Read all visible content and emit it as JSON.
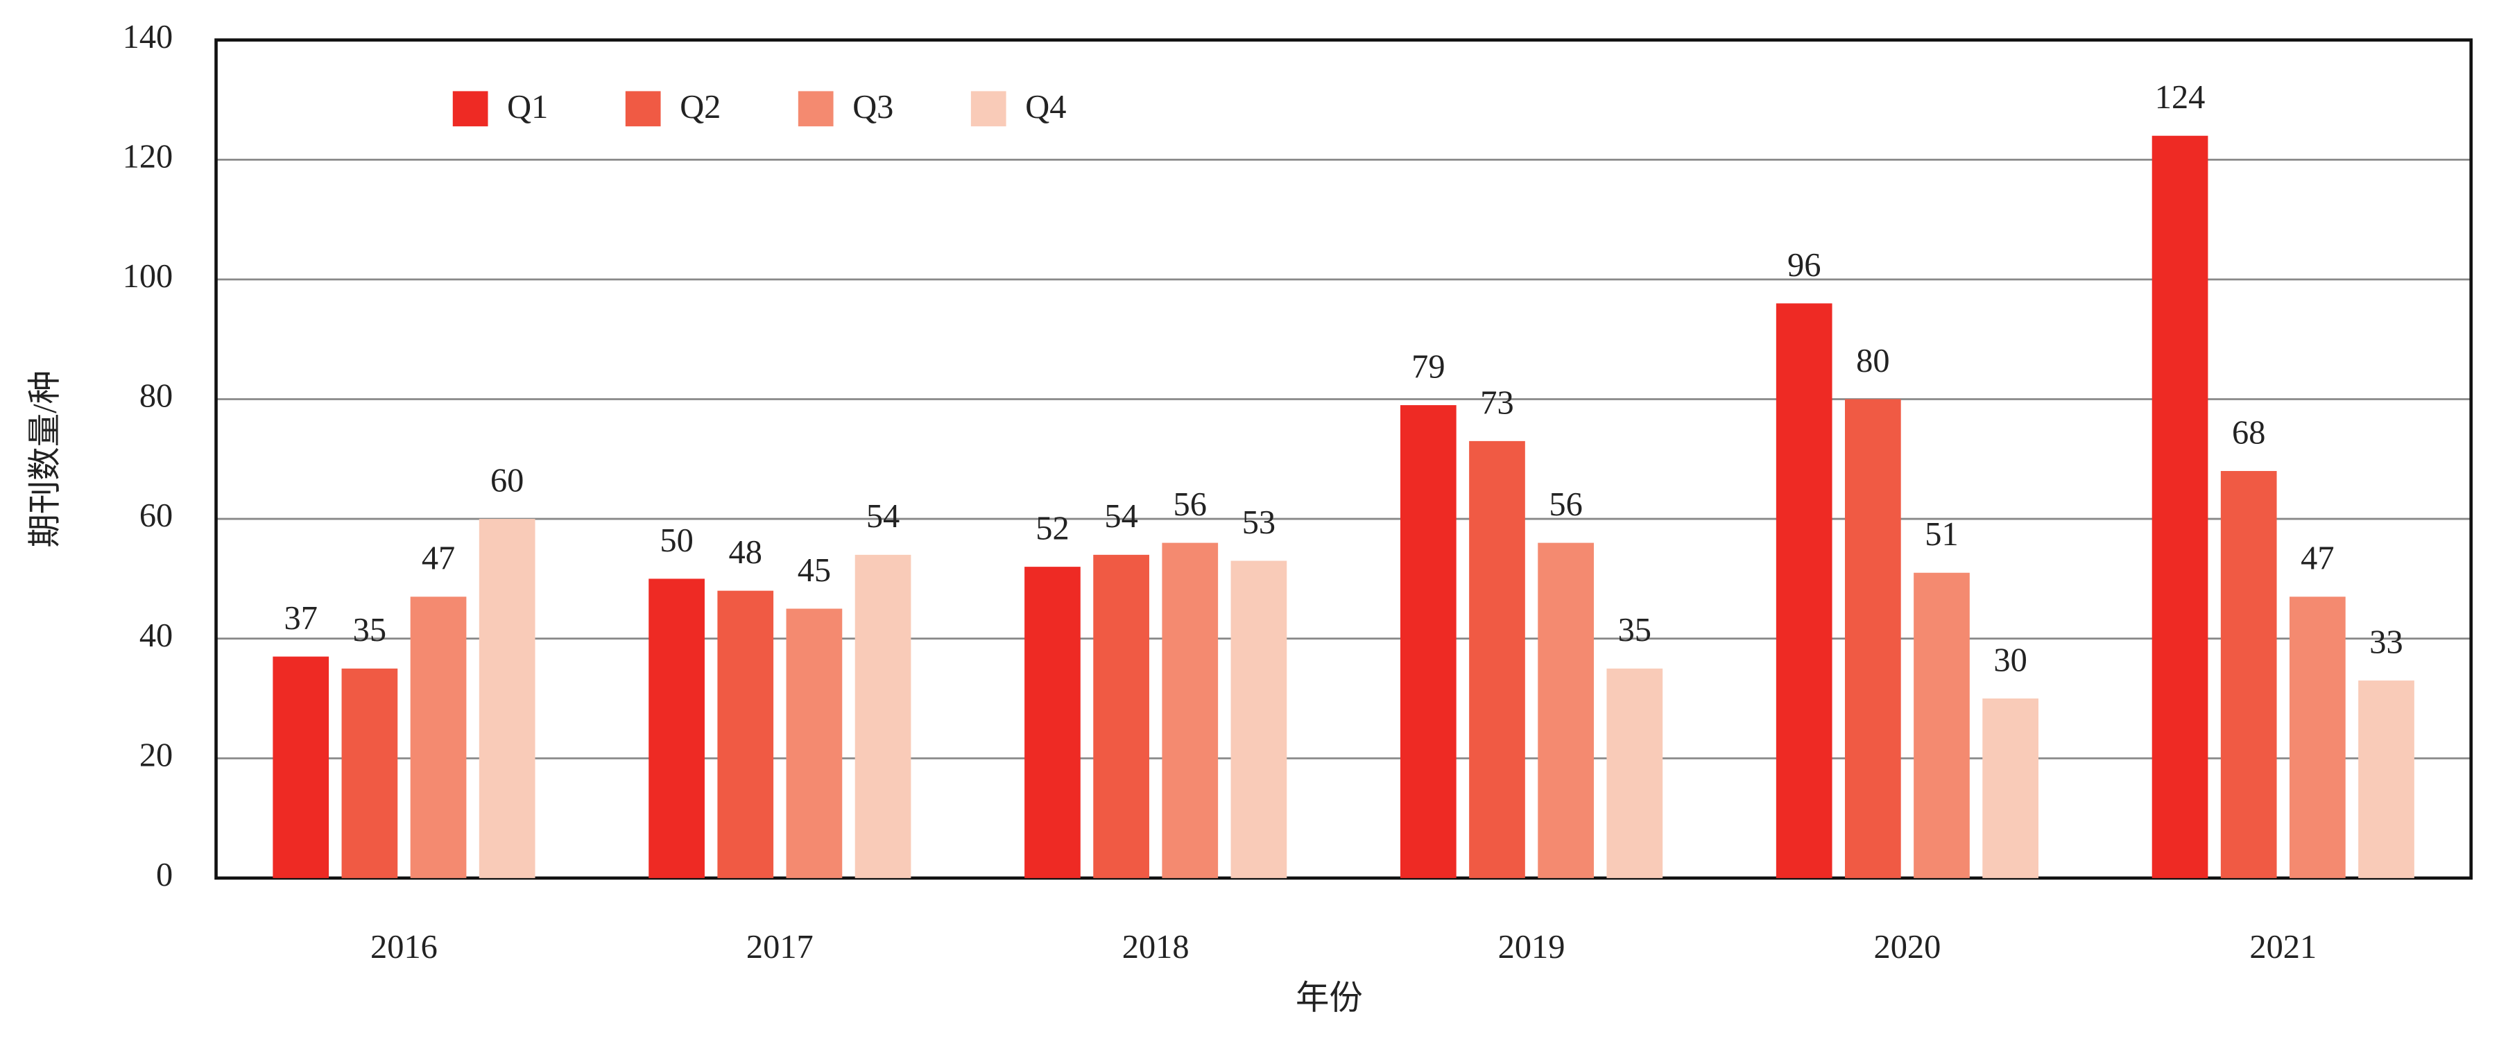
{
  "chart_data": {
    "type": "bar",
    "x_label": "年份",
    "y_label": "期刊数量/种",
    "categories": [
      "2016",
      "2017",
      "2018",
      "2019",
      "2020",
      "2021"
    ],
    "series": [
      {
        "name": "Q1",
        "color": "#ee2a24",
        "values": [
          37,
          50,
          52,
          79,
          96,
          124
        ]
      },
      {
        "name": "Q2",
        "color": "#f05a44",
        "values": [
          35,
          48,
          54,
          73,
          80,
          68
        ]
      },
      {
        "name": "Q3",
        "color": "#f48a70",
        "values": [
          47,
          45,
          56,
          56,
          51,
          47
        ]
      },
      {
        "name": "Q4",
        "color": "#f9cbb8",
        "values": [
          60,
          54,
          53,
          35,
          30,
          33
        ]
      }
    ],
    "ylim": [
      0,
      140
    ],
    "yticks": [
      0,
      20,
      40,
      60,
      80,
      100,
      120,
      140
    ],
    "grid": true,
    "legend_position": "upper left"
  }
}
